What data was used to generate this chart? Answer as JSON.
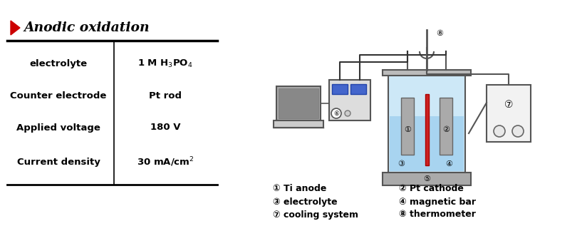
{
  "title": "Anodic oxidation",
  "table_rows": [
    [
      "electrolyte",
      "1 M H$_3$PO$_4$"
    ],
    [
      "Counter electrode",
      "Pt rod"
    ],
    [
      "Applied voltage",
      "180 V"
    ],
    [
      "Current density",
      "30 mA/cm$^2$"
    ]
  ],
  "bg_color": "#ffffff",
  "text_color": "#000000",
  "arrow_color": "#cc0000",
  "table_line_color": "#000000",
  "figsize": [
    8.24,
    3.17
  ],
  "dpi": 100
}
